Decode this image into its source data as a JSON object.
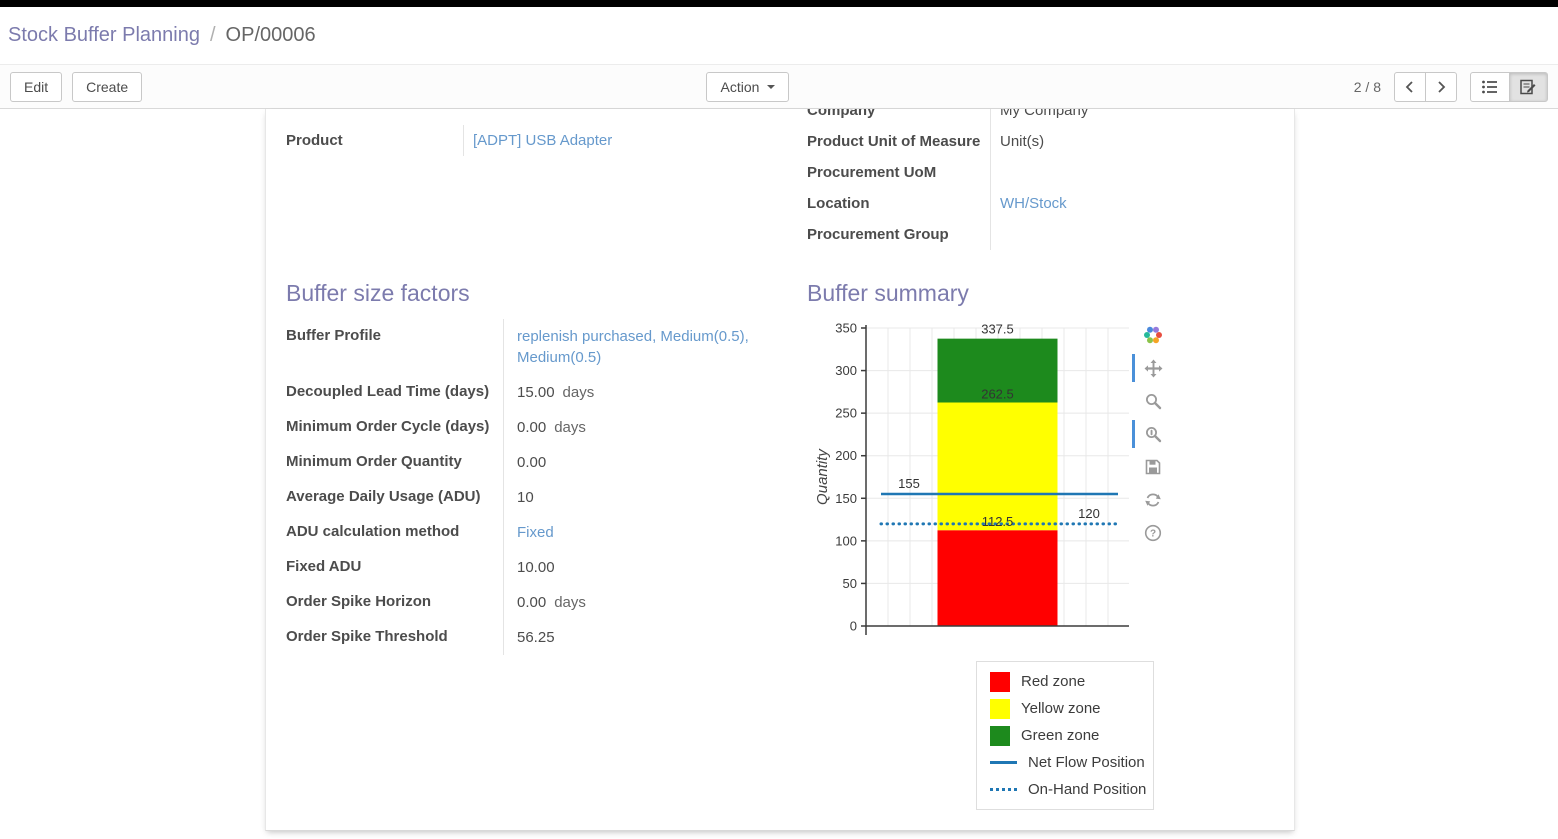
{
  "breadcrumb": {
    "parent": "Stock Buffer Planning",
    "separator": "/",
    "current": "OP/00006"
  },
  "control_panel": {
    "edit": "Edit",
    "create": "Create",
    "action": "Action",
    "pager_value": "2 / 8"
  },
  "colors": {
    "accent": "#7c7bad",
    "link": "#6699cc",
    "toolbar_active_indicator": "#4a90d9"
  },
  "sheet": {
    "top_left_fields": [
      {
        "label": "Product",
        "value": "[ADPT] USB Adapter",
        "link": true
      }
    ],
    "top_right_fields": [
      {
        "label": "Company",
        "value": "My Company"
      },
      {
        "label": "Product Unit of Measure",
        "value": "Unit(s)"
      },
      {
        "label": "Procurement UoM",
        "value": ""
      },
      {
        "label": "Location",
        "value": "WH/Stock",
        "link": true
      },
      {
        "label": "Procurement Group",
        "value": ""
      }
    ],
    "buffer_factors": {
      "heading": "Buffer size factors",
      "fields": [
        {
          "label": "Buffer Profile",
          "value": "replenish purchased, Medium(0.5), Medium(0.5)",
          "link": true
        },
        {
          "label": "Decoupled Lead Time (days)",
          "value": "15.00",
          "unit": "days"
        },
        {
          "label": "Minimum Order Cycle (days)",
          "value": "0.00",
          "unit": "days"
        },
        {
          "label": "Minimum Order Quantity",
          "value": "0.00"
        },
        {
          "label": "Average Daily Usage (ADU)",
          "value": "10"
        },
        {
          "label": "ADU calculation method",
          "value": "Fixed",
          "link": true
        },
        {
          "label": "Fixed ADU",
          "value": "10.00"
        },
        {
          "label": "Order Spike Horizon",
          "value": "0.00",
          "unit": "days"
        },
        {
          "label": "Order Spike Threshold",
          "value": "56.25"
        }
      ]
    },
    "buffer_summary": {
      "heading": "Buffer summary"
    }
  },
  "chart_data": {
    "type": "bar",
    "title": "Buffer summary",
    "xlabel": "",
    "ylabel": "Quantity",
    "ylim": [
      0,
      350
    ],
    "yticks": [
      0,
      50,
      100,
      150,
      200,
      250,
      300,
      350
    ],
    "grid": true,
    "zones": [
      {
        "name": "Red zone",
        "from": 0,
        "to": 112.5,
        "color": "#ff0000"
      },
      {
        "name": "Yellow zone",
        "from": 112.5,
        "to": 262.5,
        "color": "#ffff00"
      },
      {
        "name": "Green zone",
        "from": 262.5,
        "to": 337.5,
        "color": "#1d8a1d"
      }
    ],
    "bar_labels": [
      {
        "value": "337.5",
        "at": 337.5,
        "position": "above"
      },
      {
        "value": "262.5",
        "at": 262.5,
        "position": "inside"
      },
      {
        "value": "112.5",
        "at": 112.5,
        "position": "inside"
      }
    ],
    "lines": [
      {
        "name": "Net Flow Position",
        "value": 155,
        "style": "solid",
        "color": "#1f77b4",
        "label_side": "left"
      },
      {
        "name": "On-Hand Position",
        "value": 120,
        "style": "dotted",
        "color": "#1f77b4",
        "label_side": "right"
      }
    ],
    "legend": [
      {
        "label": "Red zone",
        "swatch": "square",
        "color": "#ff0000"
      },
      {
        "label": "Yellow zone",
        "swatch": "square",
        "color": "#ffff00"
      },
      {
        "label": "Green zone",
        "swatch": "square",
        "color": "#1d8a1d"
      },
      {
        "label": "Net Flow Position",
        "swatch": "line",
        "color": "#1f77b4"
      },
      {
        "label": "On-Hand Position",
        "swatch": "dotted",
        "color": "#1f77b4"
      }
    ],
    "legend_position": "bottom-right"
  }
}
